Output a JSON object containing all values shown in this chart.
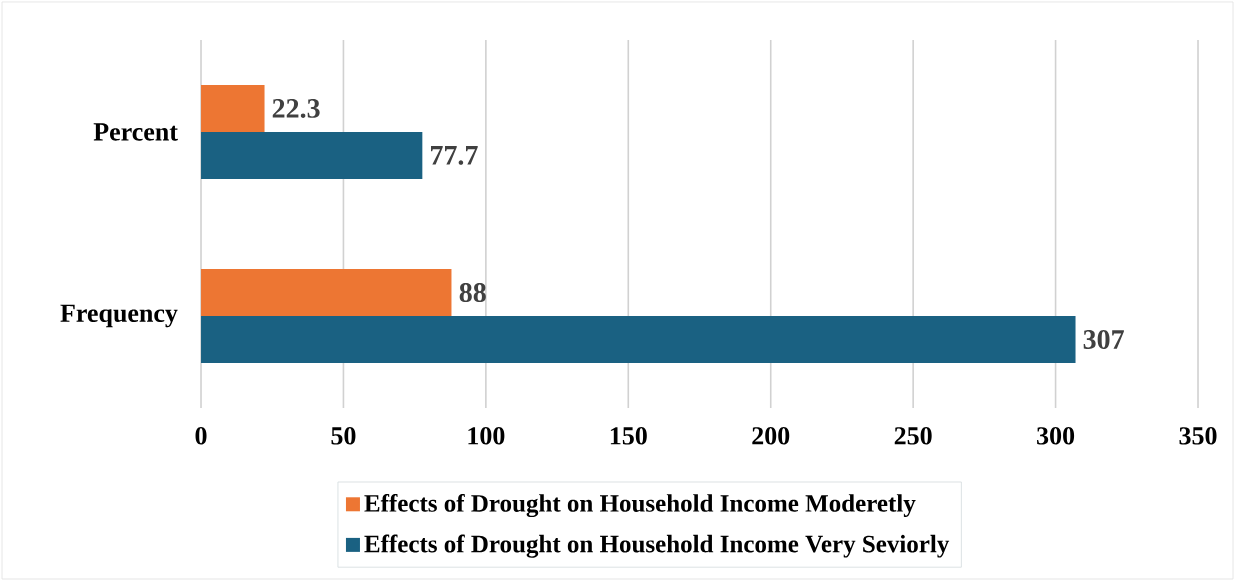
{
  "chart_data": {
    "type": "bar",
    "orientation": "horizontal",
    "categories": [
      "Percent",
      "Frequency"
    ],
    "series": [
      {
        "name": "Effects of Drought on Household Income Moderetly",
        "color": "#ed7633",
        "values": [
          22.3,
          88
        ]
      },
      {
        "name": "Effects of Drought on Household Income Very Seviorly",
        "color": "#1a6182",
        "values": [
          77.7,
          307
        ]
      }
    ],
    "xlim": [
      0,
      350
    ],
    "xticks": [
      0,
      50,
      100,
      150,
      200,
      250,
      300,
      350
    ],
    "grid": "x",
    "legend": "bottom",
    "data_labels": true
  }
}
